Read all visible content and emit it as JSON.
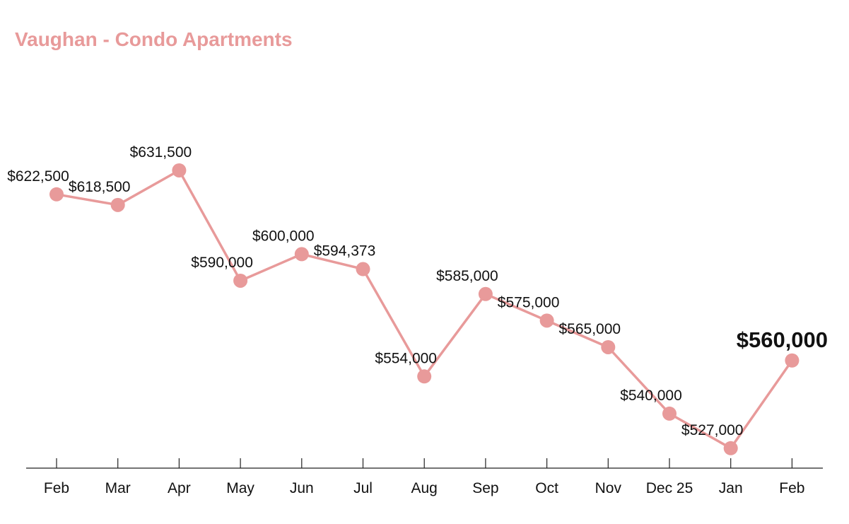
{
  "chart_data": {
    "type": "line",
    "title": "Vaughan - Condo Apartments",
    "xlabel": "",
    "ylabel": "",
    "categories": [
      "Feb",
      "Mar",
      "Apr",
      "May",
      "Jun",
      "Jul",
      "Aug",
      "Sep",
      "Oct",
      "Nov",
      "Dec 25",
      "Jan",
      "Feb"
    ],
    "series": [
      {
        "values": [
          622500,
          618500,
          631500,
          590000,
          600000,
          594373,
          554000,
          585000,
          575000,
          565000,
          540000,
          527000,
          560000
        ]
      }
    ],
    "data_labels": [
      "$622,500",
      "$618,500",
      "$631,500",
      "$590,000",
      "$600,000",
      "$594,373",
      "$554,000",
      "$585,000",
      "$575,000",
      "$565,000",
      "$540,000",
      "$527,000",
      "$560,000"
    ],
    "ylim": [
      519500,
      669000
    ],
    "y_axis_visible": false,
    "grid": false,
    "legend": "none",
    "highlight_last_point": true,
    "colors": {
      "line": "#e89a9a",
      "marker": "#e89a9a",
      "title": "#e89a9a",
      "highlight_label": "#34a853",
      "axis": "#222222",
      "text": "#111111"
    }
  }
}
